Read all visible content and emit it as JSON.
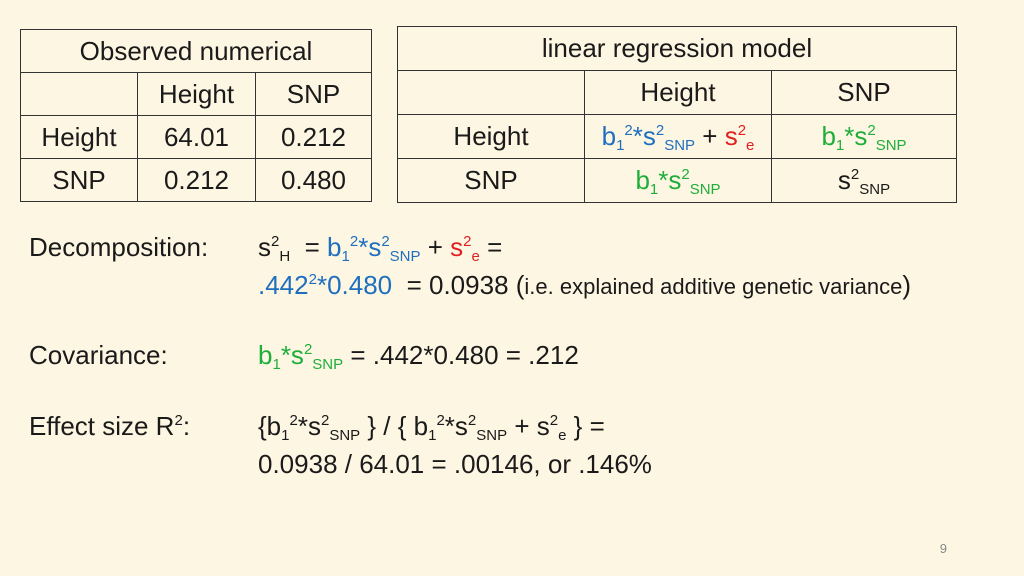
{
  "observed_table": {
    "title": "Observed numerical",
    "headers": [
      "",
      "Height",
      "SNP"
    ],
    "rows": [
      {
        "label": "Height",
        "cells": [
          "64.01",
          "0.212"
        ]
      },
      {
        "label": "SNP",
        "cells": [
          "0.212",
          "0.480"
        ]
      }
    ]
  },
  "model_table": {
    "title": "linear regression model",
    "headers": [
      "",
      "Height",
      "SNP"
    ],
    "row_labels": [
      "Height",
      "SNP"
    ]
  },
  "sections": {
    "decomposition_label": "Decomposition:",
    "covariance_label": "Covariance:",
    "effect_size_label": "Effect size R",
    "decomposition_value": ".442",
    "decomposition_result": "= 0.0938",
    "decomposition_note": "i.e. explained additive genetic variance",
    "covariance_result": "= .442*0.480 = .212",
    "effect_size_result": "0.0938 / 64.01  = .00146, or .146%"
  },
  "page_number": "9",
  "colors": {
    "blue": "#1f6fbf",
    "red": "#e02020",
    "green": "#1fae3a",
    "background": "#fdf6e3"
  }
}
